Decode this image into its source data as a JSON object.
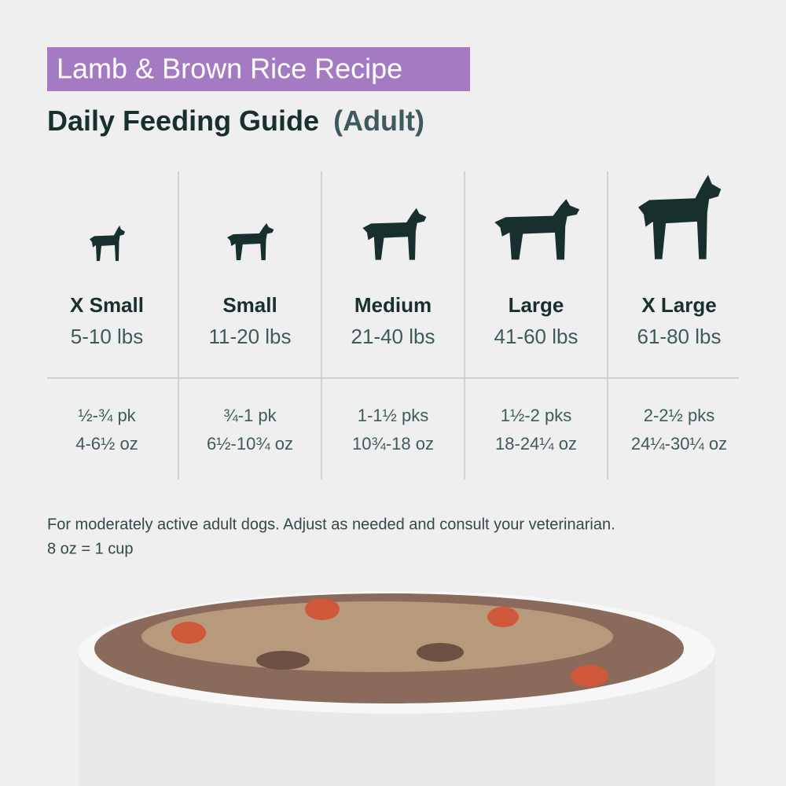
{
  "header": {
    "recipe": "Lamb & Brown Rice Recipe",
    "title": "Daily Feeding Guide",
    "qualifier": "(Adult)"
  },
  "columns": [
    {
      "size": "X Small",
      "weight": "5-10 lbs",
      "packs": "½-¾ pk",
      "ounces": "4-6½ oz"
    },
    {
      "size": "Small",
      "weight": "11-20 lbs",
      "packs": "¾-1 pk",
      "ounces": "6½-10¾ oz"
    },
    {
      "size": "Medium",
      "weight": "21-40 lbs",
      "packs": "1-1½ pks",
      "ounces": "10¾-18 oz"
    },
    {
      "size": "Large",
      "weight": "41-60 lbs",
      "packs": "1½-2 pks",
      "ounces": "18-24¼ oz"
    },
    {
      "size": "X Large",
      "weight": "61-80 lbs",
      "packs": "2-2½ pks",
      "ounces": "24¼-30¼ oz"
    }
  ],
  "footnote": {
    "line1": "For moderately active adult dogs. Adjust as needed and consult your veterinarian.",
    "line2": "8 oz = 1 cup"
  }
}
